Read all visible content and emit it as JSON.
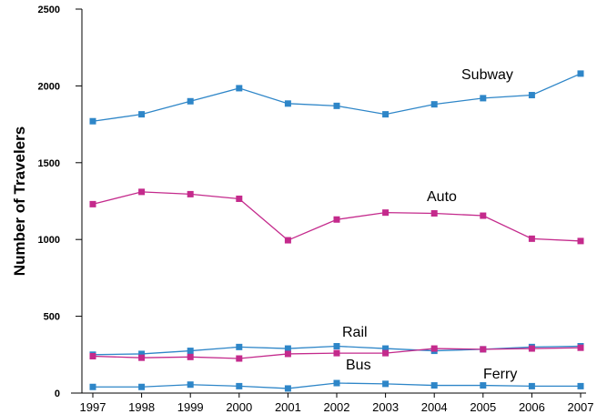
{
  "chart_data": {
    "type": "line",
    "title": "",
    "xlabel": "",
    "ylabel": "Number of Travelers",
    "ylim": [
      0,
      2500
    ],
    "yticks": [
      "0",
      "500",
      "1000",
      "1500",
      "2000",
      "2500"
    ],
    "categories": [
      "1997",
      "1998",
      "1999",
      "2000",
      "2001",
      "2002",
      "2003",
      "2004",
      "2005",
      "2006",
      "2007"
    ],
    "grid": false,
    "legend": "none (series labeled inline)",
    "series": [
      {
        "name": "Subway",
        "color": "#2e86c8",
        "values": [
          1770,
          1815,
          1900,
          1985,
          1885,
          1870,
          1815,
          1880,
          1920,
          1940,
          2080
        ]
      },
      {
        "name": "Auto",
        "color": "#c42a8c",
        "values": [
          1230,
          1310,
          1295,
          1265,
          995,
          1130,
          1175,
          1170,
          1155,
          1005,
          990
        ]
      },
      {
        "name": "Rail",
        "color": "#2e86c8",
        "values": [
          250,
          255,
          275,
          300,
          290,
          305,
          290,
          275,
          285,
          300,
          305
        ]
      },
      {
        "name": "Bus",
        "color": "#c42a8c",
        "values": [
          240,
          230,
          235,
          225,
          255,
          260,
          260,
          290,
          285,
          290,
          295
        ]
      },
      {
        "name": "Ferry",
        "color": "#2e86c8",
        "values": [
          40,
          40,
          55,
          45,
          30,
          65,
          60,
          50,
          50,
          45,
          45
        ]
      }
    ]
  }
}
